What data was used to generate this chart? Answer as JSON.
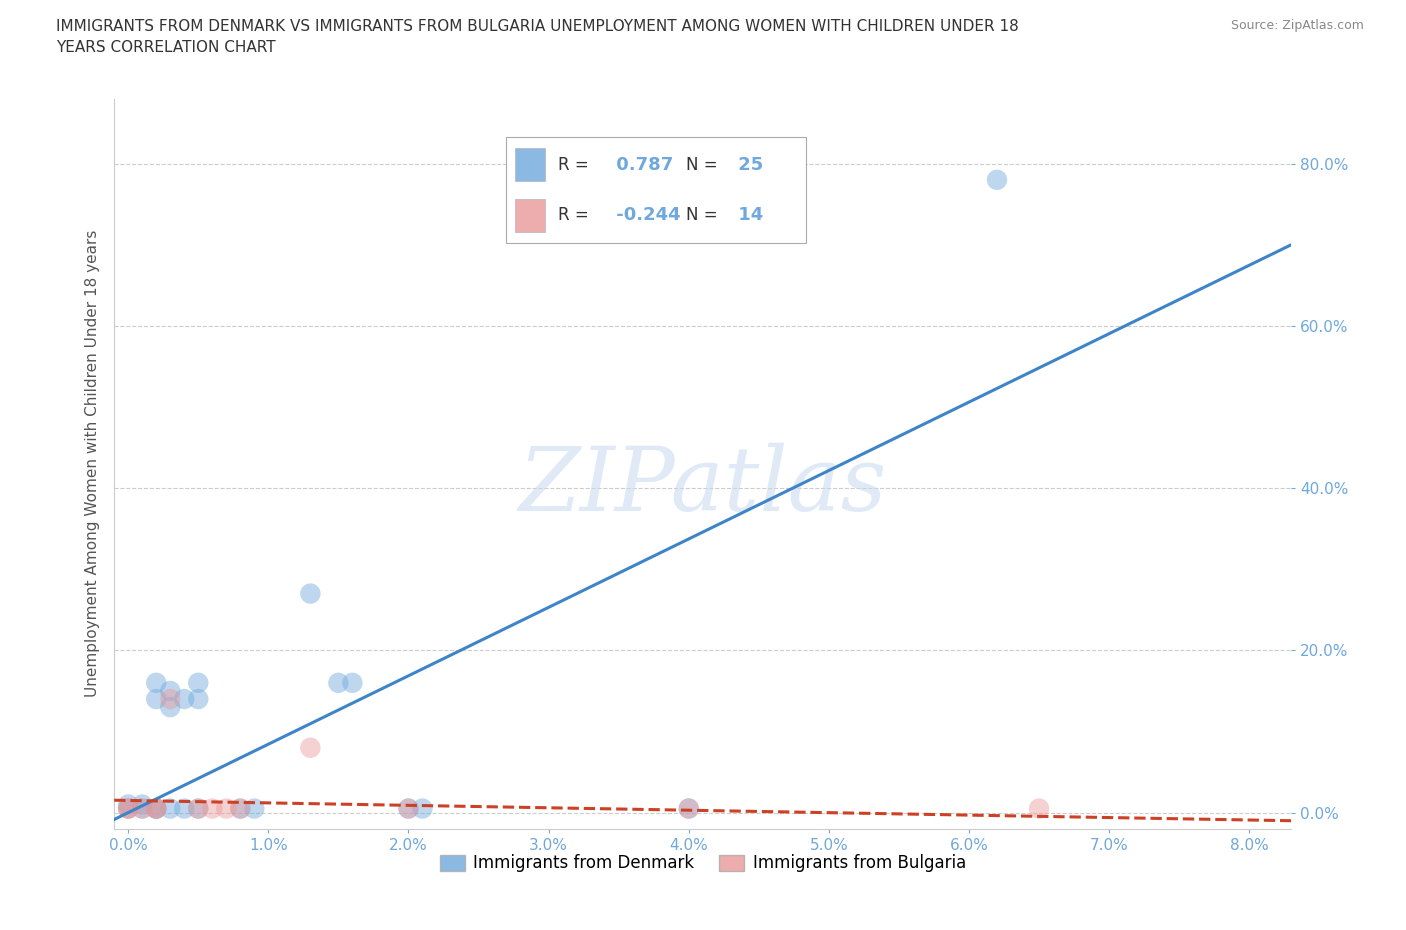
{
  "title": "IMMIGRANTS FROM DENMARK VS IMMIGRANTS FROM BULGARIA UNEMPLOYMENT AMONG WOMEN WITH CHILDREN UNDER 18\nYEARS CORRELATION CHART",
  "source": "Source: ZipAtlas.com",
  "ylabel": "Unemployment Among Women with Children Under 18 years",
  "x_ticks": [
    0.0,
    0.01,
    0.02,
    0.03,
    0.04,
    0.05,
    0.06,
    0.07,
    0.08
  ],
  "x_tick_labels": [
    "0.0%",
    "1.0%",
    "2.0%",
    "3.0%",
    "4.0%",
    "5.0%",
    "6.0%",
    "7.0%",
    "8.0%"
  ],
  "y_ticks": [
    0.0,
    0.2,
    0.4,
    0.6,
    0.8
  ],
  "y_tick_labels": [
    "0.0%",
    "20.0%",
    "40.0%",
    "60.0%",
    "80.0%"
  ],
  "xlim": [
    -0.001,
    0.083
  ],
  "ylim": [
    -0.02,
    0.88
  ],
  "denmark_color": "#6fa8dc",
  "bulgaria_color": "#ea9999",
  "denmark_line_color": "#3d85c8",
  "bulgaria_line_color": "#cc4125",
  "denmark_scatter": [
    [
      0.0,
      0.005
    ],
    [
      0.0,
      0.01
    ],
    [
      0.001,
      0.005
    ],
    [
      0.001,
      0.01
    ],
    [
      0.002,
      0.005
    ],
    [
      0.002,
      0.005
    ],
    [
      0.002,
      0.14
    ],
    [
      0.002,
      0.16
    ],
    [
      0.003,
      0.005
    ],
    [
      0.003,
      0.13
    ],
    [
      0.003,
      0.15
    ],
    [
      0.004,
      0.005
    ],
    [
      0.004,
      0.14
    ],
    [
      0.005,
      0.005
    ],
    [
      0.005,
      0.14
    ],
    [
      0.005,
      0.16
    ],
    [
      0.008,
      0.005
    ],
    [
      0.009,
      0.005
    ],
    [
      0.013,
      0.27
    ],
    [
      0.015,
      0.16
    ],
    [
      0.016,
      0.16
    ],
    [
      0.02,
      0.005
    ],
    [
      0.021,
      0.005
    ],
    [
      0.062,
      0.78
    ],
    [
      0.04,
      0.005
    ]
  ],
  "bulgaria_scatter": [
    [
      0.0,
      0.005
    ],
    [
      0.0,
      0.005
    ],
    [
      0.001,
      0.005
    ],
    [
      0.002,
      0.005
    ],
    [
      0.002,
      0.005
    ],
    [
      0.003,
      0.14
    ],
    [
      0.005,
      0.005
    ],
    [
      0.006,
      0.005
    ],
    [
      0.007,
      0.005
    ],
    [
      0.008,
      0.005
    ],
    [
      0.013,
      0.08
    ],
    [
      0.02,
      0.005
    ],
    [
      0.04,
      0.005
    ],
    [
      0.065,
      0.005
    ]
  ],
  "denmark_R": 0.787,
  "denmark_N": 25,
  "bulgaria_R": -0.244,
  "bulgaria_N": 14,
  "watermark_text": "ZIPatlas",
  "background_color": "#ffffff",
  "grid_color": "#cccccc",
  "legend_bottom": [
    "Immigrants from Denmark",
    "Immigrants from Bulgaria"
  ],
  "scatter_size": 120,
  "scatter_alpha": 0.45,
  "line_width": 2.2,
  "tick_color": "#6fa8dc",
  "label_color": "#555555"
}
